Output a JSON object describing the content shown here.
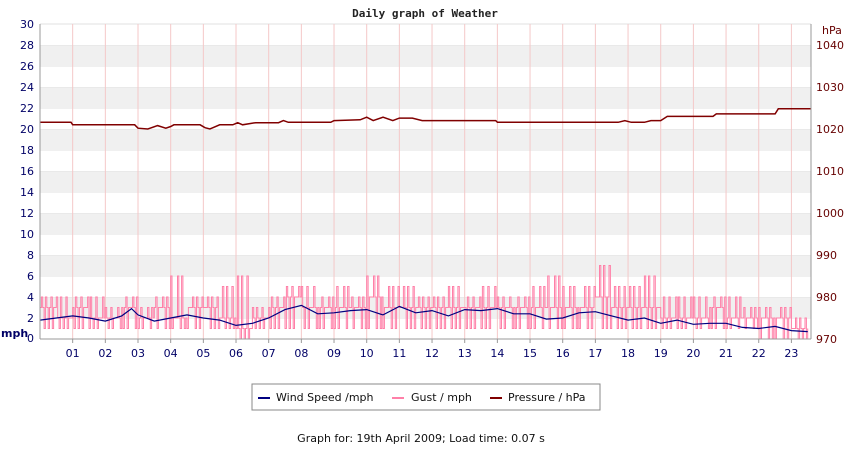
{
  "chart_data": {
    "type": "line",
    "title": "Daily graph of Weather",
    "footer": "Graph for: 19th April 2009; Load time: 0.07 s",
    "y_left": {
      "unit": "mph",
      "ylim": [
        0,
        30
      ],
      "ticks": [
        "0",
        "2",
        "4",
        "6",
        "8",
        "10",
        "12",
        "14",
        "16",
        "18",
        "20",
        "22",
        "24",
        "26",
        "28",
        "30"
      ]
    },
    "y_right": {
      "unit": "hPa",
      "ylim": [
        970,
        1045
      ],
      "ticks": [
        "970",
        "980",
        "990",
        "1000",
        "1010",
        "1020",
        "1030",
        "1040"
      ]
    },
    "x_axis": {
      "xlim": [
        0,
        23.6
      ],
      "ticks": [
        "01",
        "02",
        "03",
        "04",
        "05",
        "06",
        "07",
        "08",
        "09",
        "10",
        "11",
        "12",
        "13",
        "14",
        "15",
        "16",
        "17",
        "18",
        "19",
        "20",
        "21",
        "22",
        "23"
      ]
    },
    "grid": true,
    "legend": {
      "placement": "bottom-center"
    },
    "series": [
      {
        "name": "Wind Speed /mph",
        "axis": "left",
        "color": "#000080",
        "x": [
          0,
          0.5,
          1,
          1.5,
          2,
          2.5,
          2.8,
          3,
          3.5,
          4,
          4.5,
          5,
          5.5,
          6,
          6.5,
          7,
          7.5,
          8,
          8.5,
          9,
          9.5,
          10,
          10.5,
          11,
          11.5,
          12,
          12.5,
          13,
          13.5,
          14,
          14.5,
          15,
          15.5,
          16,
          16.5,
          17,
          17.5,
          18,
          18.5,
          19,
          19.5,
          20,
          20.5,
          21,
          21.5,
          22,
          22.5,
          23,
          23.5
        ],
        "values": [
          1.8,
          2.0,
          2.2,
          2.0,
          1.7,
          2.2,
          2.9,
          2.3,
          1.7,
          2.0,
          2.3,
          2.0,
          1.8,
          1.3,
          1.5,
          2.0,
          2.8,
          3.2,
          2.4,
          2.5,
          2.7,
          2.8,
          2.3,
          3.1,
          2.5,
          2.7,
          2.2,
          2.8,
          2.7,
          2.9,
          2.4,
          2.4,
          1.9,
          2.0,
          2.5,
          2.6,
          2.2,
          1.8,
          2.0,
          1.5,
          1.8,
          1.4,
          1.5,
          1.5,
          1.1,
          1.0,
          1.2,
          0.8,
          0.7
        ]
      },
      {
        "name": "Gust / mph",
        "axis": "left",
        "color": "#ff80a8",
        "x": [
          0,
          0.5,
          1,
          1.5,
          2,
          2.5,
          3,
          3.5,
          4,
          4.5,
          5,
          5.5,
          6,
          6.5,
          7,
          7.5,
          8,
          8.5,
          9,
          9.5,
          10,
          10.5,
          11,
          11.5,
          12,
          12.5,
          13,
          13.5,
          14,
          14.5,
          15,
          15.5,
          16,
          16.5,
          17,
          17.5,
          18,
          18.5,
          19,
          19.5,
          20,
          20.5,
          21,
          21.5,
          22,
          22.5,
          23,
          23.5
        ],
        "values": [
          3,
          2,
          3,
          2,
          2,
          3,
          2,
          3,
          2,
          3,
          3,
          2,
          1,
          2,
          3,
          4,
          3,
          3,
          3,
          3,
          4,
          3,
          3,
          3,
          3,
          3,
          3,
          3,
          3,
          3,
          3,
          3,
          3,
          3,
          4,
          3,
          3,
          3,
          2,
          2,
          2,
          3,
          2,
          2,
          2,
          2,
          1,
          1
        ],
        "min_values": [
          1,
          1,
          1,
          1,
          1,
          1,
          1,
          1,
          1,
          1,
          1,
          1,
          0,
          1,
          1,
          1,
          1,
          1,
          1,
          1,
          1,
          1,
          1,
          1,
          1,
          1,
          1,
          1,
          1,
          1,
          1,
          1,
          1,
          1,
          1,
          1,
          1,
          1,
          1,
          1,
          1,
          1,
          1,
          1,
          0,
          0,
          0,
          0
        ],
        "max_values": [
          4,
          4,
          4,
          4,
          3,
          4,
          3,
          4,
          6,
          4,
          4,
          5,
          6,
          3,
          4,
          5,
          5,
          4,
          5,
          4,
          6,
          5,
          5,
          4,
          4,
          5,
          4,
          5,
          4,
          4,
          5,
          6,
          5,
          5,
          7,
          5,
          5,
          6,
          4,
          4,
          4,
          4,
          4,
          3,
          3,
          3,
          2,
          2
        ]
      },
      {
        "name": "Pressure / hPa",
        "axis": "right",
        "color": "#800000",
        "x": [
          0,
          0.95,
          1.0,
          2.9,
          3.0,
          3.3,
          3.6,
          3.85,
          4.0,
          4.1,
          4.9,
          5.05,
          5.2,
          5.5,
          5.9,
          6.05,
          6.2,
          6.6,
          7.3,
          7.45,
          7.6,
          8.9,
          9.0,
          9.8,
          10.0,
          10.2,
          10.5,
          10.8,
          11.0,
          11.4,
          11.7,
          11.9,
          13.95,
          14.0,
          17.7,
          17.9,
          18.1,
          18.5,
          18.7,
          19.0,
          19.2,
          20.6,
          20.7,
          22.5,
          22.6,
          23.6
        ],
        "values": [
          1021.6,
          1021.6,
          1021.0,
          1021.0,
          1020.2,
          1020.0,
          1020.8,
          1020.2,
          1020.6,
          1021.0,
          1021.0,
          1020.3,
          1020.0,
          1021.0,
          1021.0,
          1021.5,
          1021.0,
          1021.5,
          1021.5,
          1022.0,
          1021.6,
          1021.6,
          1022.0,
          1022.2,
          1022.8,
          1022.0,
          1022.8,
          1022.0,
          1022.6,
          1022.6,
          1022.0,
          1022.0,
          1022.0,
          1021.6,
          1021.6,
          1022.0,
          1021.6,
          1021.6,
          1022.0,
          1022.0,
          1023.0,
          1023.0,
          1023.6,
          1023.6,
          1024.8,
          1024.8
        ]
      }
    ]
  }
}
